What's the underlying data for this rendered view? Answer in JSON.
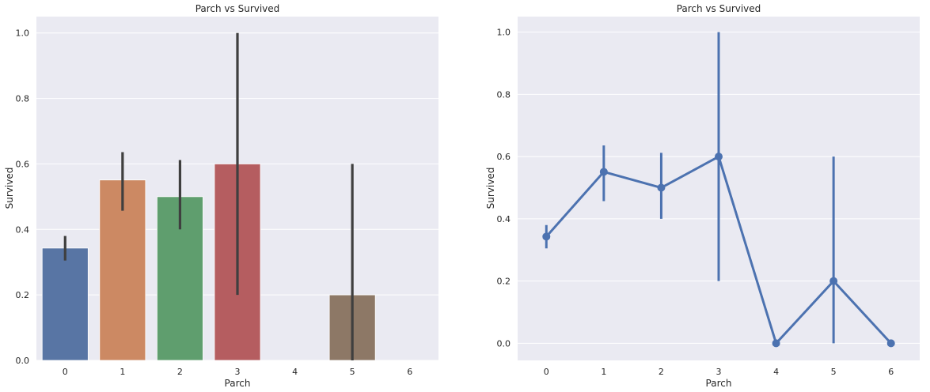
{
  "chart_data": [
    {
      "type": "bar",
      "title": "Parch vs Survived",
      "xlabel": "Parch",
      "ylabel": "Survived",
      "categories": [
        "0",
        "1",
        "2",
        "3",
        "4",
        "5",
        "6"
      ],
      "values": [
        0.343,
        0.551,
        0.5,
        0.6,
        0.0,
        0.2,
        0.0
      ],
      "error_low": [
        0.305,
        0.457,
        0.4,
        0.2,
        0.0,
        0.0,
        0.0
      ],
      "error_high": [
        0.38,
        0.636,
        0.612,
        1.0,
        0.0,
        0.6,
        0.0
      ],
      "colors": [
        "#5875a4",
        "#cc8963",
        "#5f9e6e",
        "#b55d60",
        "#857aab",
        "#8d7866",
        "#d095bf"
      ],
      "yticks": [
        "0.0",
        "0.2",
        "0.4",
        "0.6",
        "0.8",
        "1.0"
      ],
      "ylim": [
        0,
        1.05
      ],
      "grid": true
    },
    {
      "type": "line",
      "title": "Parch vs Survived",
      "xlabel": "Parch",
      "ylabel": "Survived",
      "categories": [
        "0",
        "1",
        "2",
        "3",
        "4",
        "5",
        "6"
      ],
      "values": [
        0.343,
        0.551,
        0.5,
        0.6,
        0.0,
        0.2,
        0.0
      ],
      "error_low": [
        0.305,
        0.457,
        0.4,
        0.2,
        0.0,
        0.0,
        0.0
      ],
      "error_high": [
        0.38,
        0.636,
        0.612,
        1.0,
        0.0,
        0.6,
        0.0
      ],
      "color": "#4c72b0",
      "yticks": [
        "0.0",
        "0.2",
        "0.4",
        "0.6",
        "0.8",
        "1.0"
      ],
      "ylim": [
        -0.055,
        1.05
      ],
      "grid": true
    }
  ]
}
